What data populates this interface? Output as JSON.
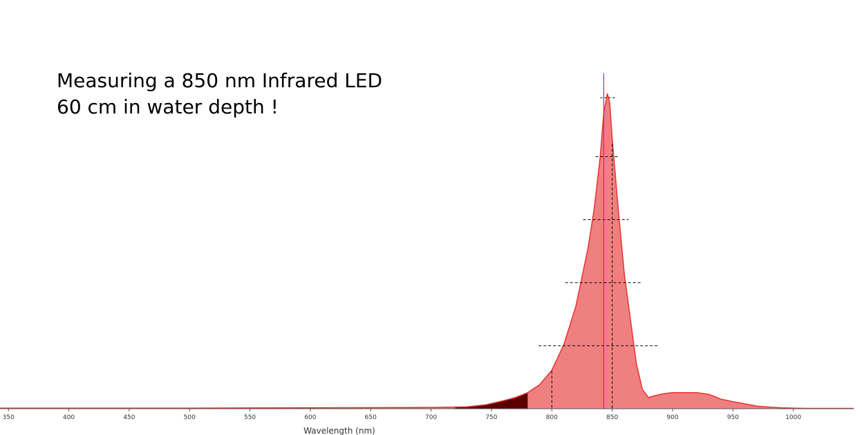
{
  "chart_data": {
    "type": "area",
    "title": "",
    "xlabel": "Wavelength (nm)",
    "ylabel": "",
    "xlim": [
      343,
      1050
    ],
    "ylim": [
      0,
      1.0
    ],
    "grid": false,
    "annotations": [
      "Measuring a 850 nm Infrared LED",
      "60 cm in water depth !"
    ],
    "x_ticks": [
      350,
      400,
      450,
      500,
      550,
      600,
      650,
      700,
      750,
      800,
      850,
      900,
      950,
      1000
    ],
    "peak_wavelength": 847,
    "marker_wavelength": 843,
    "series": [
      {
        "x": [
          343,
          400,
          500,
          600,
          700,
          730,
          745,
          760,
          770,
          780,
          790,
          800,
          810,
          820,
          830,
          835,
          840,
          843,
          846,
          848,
          850,
          855,
          860,
          865,
          870,
          875,
          880,
          885,
          890,
          895,
          900,
          910,
          920,
          930,
          940,
          950,
          960,
          970,
          980,
          990,
          1000,
          1010,
          1050
        ],
        "values": [
          0.002,
          0.002,
          0.002,
          0.003,
          0.004,
          0.006,
          0.012,
          0.025,
          0.035,
          0.05,
          0.075,
          0.12,
          0.2,
          0.32,
          0.5,
          0.62,
          0.78,
          0.92,
          0.98,
          0.95,
          0.84,
          0.62,
          0.42,
          0.28,
          0.14,
          0.06,
          0.035,
          0.04,
          0.045,
          0.048,
          0.05,
          0.05,
          0.05,
          0.045,
          0.03,
          0.022,
          0.015,
          0.008,
          0.005,
          0.003,
          0.002,
          0.001,
          0.001
        ]
      }
    ],
    "colors": {
      "fill": "#f08080",
      "line": "#e63232",
      "dark_fill": "#5a0000",
      "marker_line": "#e000e0",
      "dashed_lines": "#000000"
    }
  }
}
